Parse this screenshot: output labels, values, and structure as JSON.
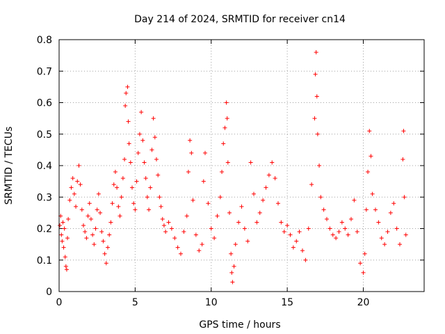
{
  "chart_data": {
    "type": "scatter",
    "title": "Day 214 of 2024, SRMTID for receiver cn14",
    "xlabel": "GPS time / hours",
    "ylabel": "SRMTID / TECUs",
    "xlim": [
      0,
      24
    ],
    "ylim": [
      0,
      0.8
    ],
    "xticks": [
      0,
      5,
      10,
      15,
      20
    ],
    "yticks": [
      0,
      0.1,
      0.2,
      0.3,
      0.4,
      0.5,
      0.6,
      0.7,
      0.8
    ],
    "xtick_labels": [
      "0",
      "5",
      "10",
      "15",
      "20"
    ],
    "ytick_labels": [
      "0",
      "0.1",
      "0.2",
      "0.3",
      "0.4",
      "0.5",
      "0.6",
      "0.7",
      "0.8"
    ],
    "grid": true,
    "marker": "+",
    "color": "#ff0000",
    "series": [
      {
        "name": "SRMTID",
        "points": [
          [
            0.05,
            0.21
          ],
          [
            0.1,
            0.24
          ],
          [
            0.15,
            0.18
          ],
          [
            0.2,
            0.16
          ],
          [
            0.25,
            0.22
          ],
          [
            0.3,
            0.14
          ],
          [
            0.35,
            0.2
          ],
          [
            0.4,
            0.11
          ],
          [
            0.45,
            0.08
          ],
          [
            0.5,
            0.07
          ],
          [
            0.55,
            0.17
          ],
          [
            0.6,
            0.23
          ],
          [
            0.7,
            0.29
          ],
          [
            0.8,
            0.33
          ],
          [
            0.9,
            0.36
          ],
          [
            1.0,
            0.31
          ],
          [
            1.1,
            0.27
          ],
          [
            1.2,
            0.35
          ],
          [
            1.3,
            0.4
          ],
          [
            1.4,
            0.34
          ],
          [
            1.5,
            0.26
          ],
          [
            1.6,
            0.21
          ],
          [
            1.7,
            0.19
          ],
          [
            1.8,
            0.17
          ],
          [
            1.9,
            0.24
          ],
          [
            2.0,
            0.28
          ],
          [
            2.1,
            0.23
          ],
          [
            2.2,
            0.18
          ],
          [
            2.3,
            0.15
          ],
          [
            2.4,
            0.2
          ],
          [
            2.5,
            0.26
          ],
          [
            2.6,
            0.31
          ],
          [
            2.7,
            0.25
          ],
          [
            2.8,
            0.19
          ],
          [
            2.9,
            0.16
          ],
          [
            3.0,
            0.12
          ],
          [
            3.1,
            0.09
          ],
          [
            3.2,
            0.14
          ],
          [
            3.3,
            0.18
          ],
          [
            3.4,
            0.22
          ],
          [
            3.5,
            0.28
          ],
          [
            3.6,
            0.34
          ],
          [
            3.7,
            0.38
          ],
          [
            3.8,
            0.33
          ],
          [
            3.9,
            0.27
          ],
          [
            4.0,
            0.24
          ],
          [
            4.1,
            0.3
          ],
          [
            4.2,
            0.36
          ],
          [
            4.3,
            0.42
          ],
          [
            4.35,
            0.59
          ],
          [
            4.4,
            0.63
          ],
          [
            4.5,
            0.65
          ],
          [
            4.55,
            0.54
          ],
          [
            4.6,
            0.47
          ],
          [
            4.7,
            0.41
          ],
          [
            4.8,
            0.33
          ],
          [
            4.9,
            0.28
          ],
          [
            5.0,
            0.26
          ],
          [
            5.1,
            0.35
          ],
          [
            5.2,
            0.44
          ],
          [
            5.3,
            0.5
          ],
          [
            5.4,
            0.57
          ],
          [
            5.5,
            0.48
          ],
          [
            5.6,
            0.41
          ],
          [
            5.7,
            0.36
          ],
          [
            5.8,
            0.3
          ],
          [
            5.9,
            0.26
          ],
          [
            6.0,
            0.33
          ],
          [
            6.1,
            0.45
          ],
          [
            6.2,
            0.55
          ],
          [
            6.3,
            0.49
          ],
          [
            6.4,
            0.42
          ],
          [
            6.5,
            0.37
          ],
          [
            6.6,
            0.3
          ],
          [
            6.7,
            0.27
          ],
          [
            6.8,
            0.23
          ],
          [
            6.9,
            0.21
          ],
          [
            7.0,
            0.19
          ],
          [
            7.2,
            0.22
          ],
          [
            7.4,
            0.2
          ],
          [
            7.6,
            0.17
          ],
          [
            7.8,
            0.14
          ],
          [
            8.0,
            0.12
          ],
          [
            8.2,
            0.19
          ],
          [
            8.4,
            0.24
          ],
          [
            8.5,
            0.38
          ],
          [
            8.6,
            0.48
          ],
          [
            8.7,
            0.44
          ],
          [
            8.8,
            0.29
          ],
          [
            9.0,
            0.18
          ],
          [
            9.2,
            0.13
          ],
          [
            9.4,
            0.15
          ],
          [
            9.5,
            0.35
          ],
          [
            9.6,
            0.44
          ],
          [
            9.8,
            0.28
          ],
          [
            10.0,
            0.2
          ],
          [
            10.2,
            0.17
          ],
          [
            10.4,
            0.24
          ],
          [
            10.6,
            0.3
          ],
          [
            10.7,
            0.38
          ],
          [
            10.8,
            0.47
          ],
          [
            10.9,
            0.52
          ],
          [
            11.0,
            0.6
          ],
          [
            11.05,
            0.55
          ],
          [
            11.1,
            0.41
          ],
          [
            11.2,
            0.25
          ],
          [
            11.3,
            0.12
          ],
          [
            11.35,
            0.06
          ],
          [
            11.4,
            0.03
          ],
          [
            11.5,
            0.08
          ],
          [
            11.6,
            0.15
          ],
          [
            11.8,
            0.22
          ],
          [
            12.0,
            0.27
          ],
          [
            12.2,
            0.2
          ],
          [
            12.4,
            0.16
          ],
          [
            12.6,
            0.41
          ],
          [
            12.8,
            0.31
          ],
          [
            13.0,
            0.22
          ],
          [
            13.2,
            0.25
          ],
          [
            13.4,
            0.29
          ],
          [
            13.6,
            0.33
          ],
          [
            13.8,
            0.37
          ],
          [
            14.0,
            0.41
          ],
          [
            14.2,
            0.36
          ],
          [
            14.4,
            0.28
          ],
          [
            14.6,
            0.22
          ],
          [
            14.8,
            0.19
          ],
          [
            15.0,
            0.21
          ],
          [
            15.2,
            0.18
          ],
          [
            15.4,
            0.14
          ],
          [
            15.6,
            0.16
          ],
          [
            15.8,
            0.19
          ],
          [
            16.0,
            0.13
          ],
          [
            16.2,
            0.1
          ],
          [
            16.4,
            0.2
          ],
          [
            16.6,
            0.34
          ],
          [
            16.8,
            0.55
          ],
          [
            16.85,
            0.69
          ],
          [
            16.9,
            0.76
          ],
          [
            16.95,
            0.62
          ],
          [
            17.0,
            0.5
          ],
          [
            17.1,
            0.4
          ],
          [
            17.2,
            0.3
          ],
          [
            17.4,
            0.26
          ],
          [
            17.6,
            0.23
          ],
          [
            17.8,
            0.2
          ],
          [
            18.0,
            0.18
          ],
          [
            18.2,
            0.17
          ],
          [
            18.4,
            0.19
          ],
          [
            18.6,
            0.22
          ],
          [
            18.8,
            0.2
          ],
          [
            19.0,
            0.18
          ],
          [
            19.2,
            0.23
          ],
          [
            19.4,
            0.29
          ],
          [
            19.6,
            0.19
          ],
          [
            19.8,
            0.09
          ],
          [
            20.0,
            0.06
          ],
          [
            20.1,
            0.12
          ],
          [
            20.2,
            0.26
          ],
          [
            20.3,
            0.38
          ],
          [
            20.4,
            0.51
          ],
          [
            20.5,
            0.43
          ],
          [
            20.6,
            0.31
          ],
          [
            20.8,
            0.26
          ],
          [
            21.0,
            0.22
          ],
          [
            21.2,
            0.17
          ],
          [
            21.4,
            0.15
          ],
          [
            21.6,
            0.19
          ],
          [
            21.8,
            0.25
          ],
          [
            22.0,
            0.28
          ],
          [
            22.2,
            0.2
          ],
          [
            22.4,
            0.15
          ],
          [
            22.6,
            0.42
          ],
          [
            22.65,
            0.51
          ],
          [
            22.7,
            0.3
          ],
          [
            22.8,
            0.18
          ]
        ]
      }
    ]
  }
}
